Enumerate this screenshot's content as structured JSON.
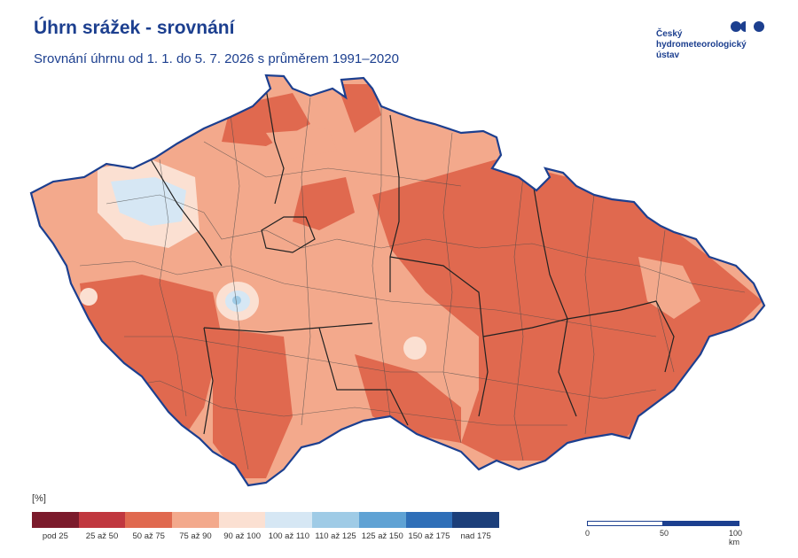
{
  "header": {
    "title": "Úhrn srážek - srovnání",
    "subtitle": "Srovnání úhrnu od 1. 1. do 5. 7. 2026 s průměrem 1991–2020"
  },
  "logo": {
    "lines": [
      "Český",
      "hydrometeorologický",
      "ústav"
    ],
    "color": "#1c3f8f"
  },
  "map": {
    "description_colors": {
      "border": "#1c3f8f",
      "district_lines": "#4a4a4a",
      "dominant_fill": "#e07a5f"
    }
  },
  "legend": {
    "unit": "[%]",
    "classes": [
      {
        "label": "pod 25",
        "color": "#7b1a2b"
      },
      {
        "label": "25 až 50",
        "color": "#c0373f"
      },
      {
        "label": "50 až 75",
        "color": "#e0694f"
      },
      {
        "label": "75 až 90",
        "color": "#f3a98c"
      },
      {
        "label": "90 až 100",
        "color": "#fbe0d2"
      },
      {
        "label": "100 až 110",
        "color": "#d6e7f4"
      },
      {
        "label": "110 až 125",
        "color": "#9fcbe6"
      },
      {
        "label": "125 až 150",
        "color": "#5fa2d4"
      },
      {
        "label": "150 až 175",
        "color": "#2f6fb8"
      },
      {
        "label": "nad 175",
        "color": "#1c3f7a"
      }
    ]
  },
  "scale": {
    "labels": [
      "0",
      "50",
      "100 km"
    ]
  }
}
